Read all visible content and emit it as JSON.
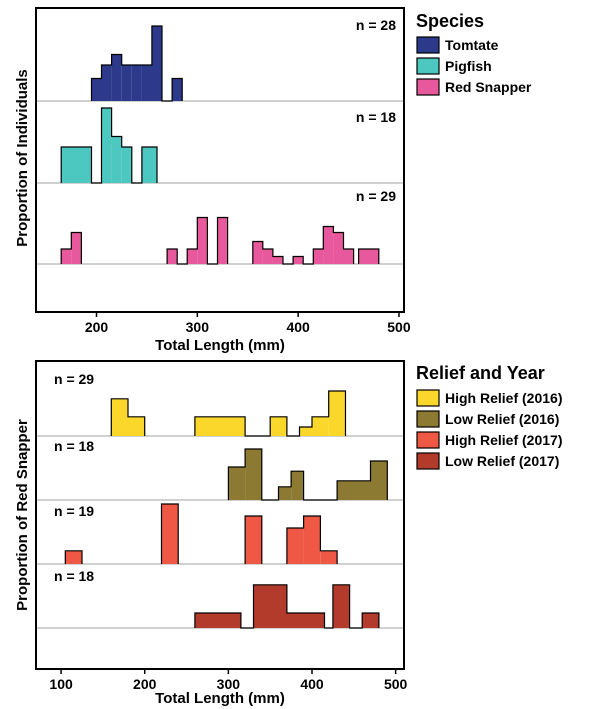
{
  "chart_data": [
    {
      "type": "histogram",
      "xlabel": "Total Length (mm)",
      "ylabel": "Proportion of Individuals",
      "xlim": [
        140,
        505
      ],
      "xticks": [
        200,
        300,
        400,
        500
      ],
      "legend_title": "Species",
      "legend_position": "right",
      "panels": [
        {
          "name": "Tomtate",
          "n_label": "n = 28",
          "color": "#2d3a8c",
          "bins": [
            [
              195,
              205,
              0.3
            ],
            [
              205,
              215,
              0.48
            ],
            [
              215,
              225,
              0.62
            ],
            [
              225,
              235,
              0.48
            ],
            [
              235,
              245,
              0.48
            ],
            [
              245,
              255,
              0.48
            ],
            [
              255,
              265,
              1.0
            ],
            [
              265,
              275,
              0.0
            ],
            [
              275,
              285,
              0.3
            ]
          ]
        },
        {
          "name": "Pigfish",
          "n_label": "n = 18",
          "color": "#4cc8c0",
          "bins": [
            [
              165,
              195,
              0.48
            ],
            [
              195,
              205,
              0.0
            ],
            [
              205,
              215,
              1.0
            ],
            [
              215,
              225,
              0.62
            ],
            [
              225,
              235,
              0.48
            ],
            [
              235,
              245,
              0.0
            ],
            [
              245,
              260,
              0.48
            ]
          ]
        },
        {
          "name": "Red Snapper",
          "n_label": "n = 29",
          "color": "#e8589c",
          "bins": [
            [
              165,
              175,
              0.2
            ],
            [
              175,
              185,
              0.42
            ],
            [
              270,
              280,
              0.2
            ],
            [
              280,
              290,
              0.0
            ],
            [
              290,
              300,
              0.2
            ],
            [
              300,
              310,
              0.62
            ],
            [
              310,
              320,
              0.0
            ],
            [
              320,
              330,
              0.62
            ],
            [
              355,
              365,
              0.3
            ],
            [
              365,
              375,
              0.2
            ],
            [
              375,
              385,
              0.1
            ],
            [
              385,
              395,
              0.0
            ],
            [
              395,
              405,
              0.1
            ],
            [
              405,
              415,
              0.0
            ],
            [
              415,
              425,
              0.2
            ],
            [
              425,
              435,
              0.5
            ],
            [
              435,
              445,
              0.42
            ],
            [
              445,
              455,
              0.2
            ],
            [
              460,
              480,
              0.2
            ]
          ]
        }
      ]
    },
    {
      "type": "histogram",
      "xlabel": "Total Length (mm)",
      "ylabel": "Proportion of Red Snapper",
      "xlim": [
        70,
        510
      ],
      "xticks": [
        100,
        200,
        300,
        400,
        500
      ],
      "legend_title": "Relief and Year",
      "legend_position": "right",
      "panels": [
        {
          "name": "High Relief (2016)",
          "n_label": "n = 29",
          "color": "#fbd72b",
          "bins": [
            [
              160,
              180,
              0.62
            ],
            [
              180,
              200,
              0.32
            ],
            [
              260,
              320,
              0.32
            ],
            [
              320,
              350,
              0.0
            ],
            [
              350,
              370,
              0.32
            ],
            [
              370,
              385,
              0.0
            ],
            [
              385,
              400,
              0.15
            ],
            [
              400,
              420,
              0.32
            ],
            [
              420,
              440,
              0.75
            ]
          ]
        },
        {
          "name": "Low Relief (2016)",
          "n_label": "n = 18",
          "color": "#8c7a32",
          "bins": [
            [
              300,
              320,
              0.55
            ],
            [
              320,
              340,
              0.85
            ],
            [
              340,
              360,
              0.0
            ],
            [
              360,
              375,
              0.22
            ],
            [
              375,
              390,
              0.48
            ],
            [
              390,
              430,
              0.0
            ],
            [
              430,
              470,
              0.32
            ],
            [
              470,
              490,
              0.65
            ]
          ]
        },
        {
          "name": "High Relief (2017)",
          "n_label": "n = 19",
          "color": "#ef5845",
          "bins": [
            [
              105,
              125,
              0.22
            ],
            [
              220,
              240,
              1.0
            ],
            [
              320,
              340,
              0.8
            ],
            [
              370,
              390,
              0.6
            ],
            [
              390,
              410,
              0.8
            ],
            [
              410,
              430,
              0.22
            ]
          ]
        },
        {
          "name": "Low Relief (2017)",
          "n_label": "n = 18",
          "color": "#b33b2c",
          "bins": [
            [
              260,
              315,
              0.25
            ],
            [
              315,
              330,
              0.0
            ],
            [
              330,
              370,
              0.72
            ],
            [
              370,
              415,
              0.25
            ],
            [
              415,
              425,
              0.0
            ],
            [
              425,
              445,
              0.72
            ],
            [
              445,
              460,
              0.0
            ],
            [
              460,
              480,
              0.25
            ]
          ]
        }
      ]
    }
  ]
}
